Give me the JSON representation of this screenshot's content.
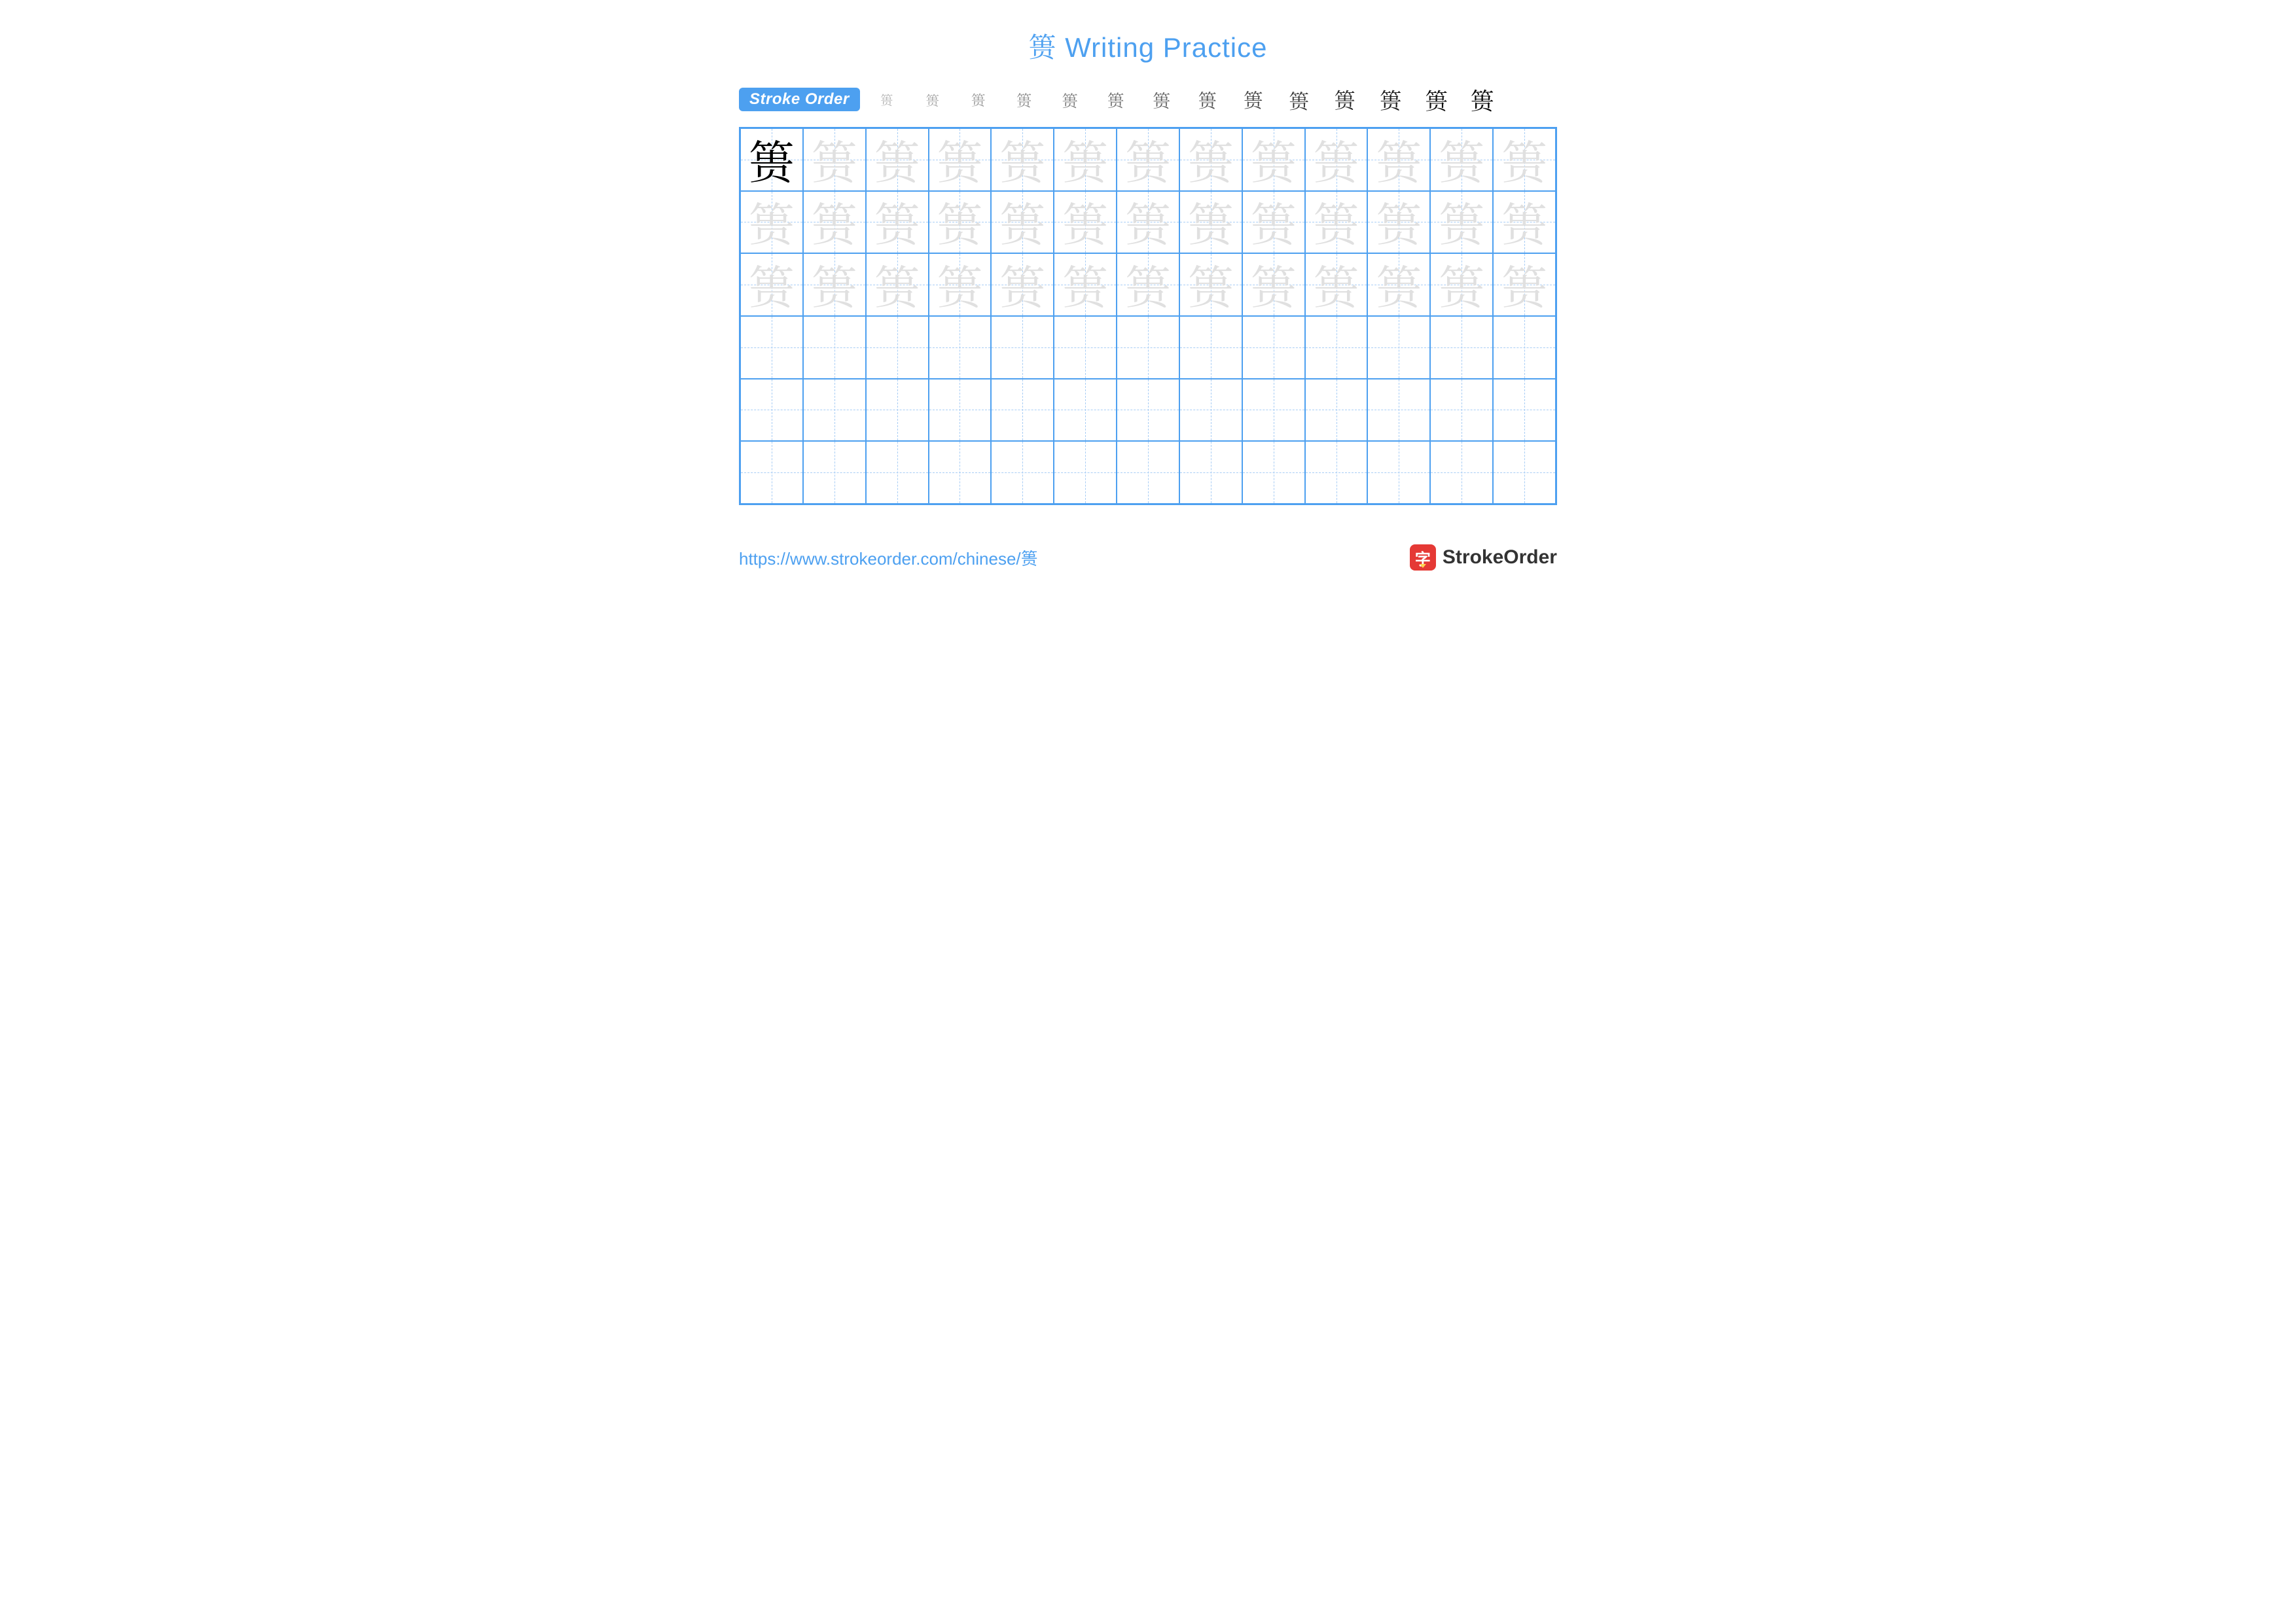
{
  "title": {
    "char": "篑",
    "text": "Writing Practice"
  },
  "stroke_order": {
    "label": "Stroke Order",
    "final_char": "篑",
    "steps_count": 14
  },
  "grid": {
    "cols": 13,
    "rows": 6,
    "char": "篑",
    "model_cells": 1,
    "trace_cells": 38,
    "colors": {
      "border": "#4da0f0",
      "dash": "#a8cdf5",
      "model": "#000000",
      "trace": "#e0e0e0"
    }
  },
  "footer": {
    "url": "https://www.strokeorder.com/chinese/篑",
    "brand_icon_char": "字",
    "brand_text": "StrokeOrder"
  }
}
